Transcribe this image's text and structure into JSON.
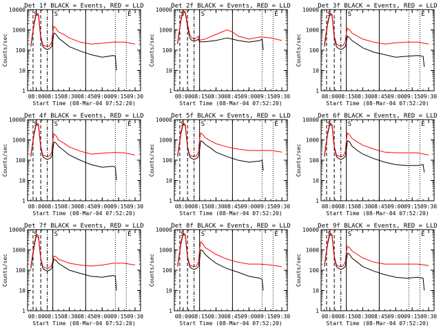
{
  "chart_data": [
    {
      "type": "line",
      "title": "Det 1f BLACK = Events, RED = LLD",
      "series": [
        {
          "color": "#000000",
          "x": [
            "07:55",
            "07:58",
            "08:00",
            "08:02",
            "08:04",
            "08:06",
            "08:08",
            "08:10",
            "08:12",
            "08:14",
            "08:15",
            "08:16",
            "08:18",
            "08:20",
            "08:25",
            "08:30",
            "08:40",
            "08:50",
            "09:00",
            "09:10",
            "09:12",
            "09:13"
          ],
          "y": [
            150,
            2000,
            6000,
            5000,
            400,
            150,
            120,
            110,
            120,
            150,
            300,
            700,
            600,
            400,
            250,
            150,
            90,
            60,
            45,
            55,
            50,
            10
          ]
        },
        {
          "color": "#ff0000",
          "x": [
            "07:55",
            "07:58",
            "08:00",
            "08:02",
            "08:04",
            "08:06",
            "08:08",
            "08:10",
            "08:12",
            "08:14",
            "08:15",
            "08:16",
            "08:18",
            "08:20",
            "08:25",
            "08:30",
            "08:40",
            "08:50",
            "09:00",
            "09:10",
            "09:20",
            "09:30"
          ],
          "y": [
            180,
            2500,
            7000,
            6000,
            500,
            180,
            160,
            150,
            160,
            250,
            800,
            1500,
            1200,
            800,
            600,
            400,
            250,
            200,
            220,
            250,
            250,
            200
          ]
        }
      ]
    },
    {
      "type": "line",
      "title": "Det 2f BLACK = Events, RED = LLD",
      "series": [
        {
          "color": "#000000",
          "x": [
            "07:55",
            "07:58",
            "08:00",
            "08:02",
            "08:04",
            "08:06",
            "08:08",
            "08:10",
            "08:12",
            "08:14",
            "08:15",
            "08:16",
            "08:20",
            "08:30",
            "08:40",
            "08:45",
            "08:50",
            "09:00",
            "09:10",
            "09:12",
            "09:13"
          ],
          "y": [
            200,
            3000,
            8000,
            7000,
            1500,
            400,
            300,
            280,
            300,
            350,
            250,
            260,
            260,
            300,
            400,
            350,
            300,
            250,
            300,
            350,
            100
          ]
        },
        {
          "color": "#ff0000",
          "x": [
            "07:55",
            "07:58",
            "08:00",
            "08:02",
            "08:04",
            "08:06",
            "08:08",
            "08:10",
            "08:12",
            "08:14",
            "08:15",
            "08:16",
            "08:20",
            "08:30",
            "08:40",
            "08:45",
            "08:50",
            "09:00",
            "09:10",
            "09:20",
            "09:30"
          ],
          "y": [
            250,
            3500,
            9000,
            8000,
            2000,
            600,
            400,
            350,
            400,
            500,
            300,
            320,
            350,
            600,
            1000,
            800,
            500,
            350,
            450,
            400,
            300
          ]
        }
      ]
    },
    {
      "type": "line",
      "title": "Det 3f BLACK = Events, RED = LLD",
      "series": [
        {
          "color": "#000000",
          "x": [
            "07:55",
            "07:58",
            "08:00",
            "08:02",
            "08:04",
            "08:06",
            "08:08",
            "08:10",
            "08:12",
            "08:14",
            "08:15",
            "08:16",
            "08:18",
            "08:20",
            "08:25",
            "08:30",
            "08:40",
            "08:50",
            "09:00",
            "09:10",
            "09:20",
            "09:25",
            "09:26"
          ],
          "y": [
            150,
            2000,
            6000,
            5000,
            400,
            150,
            120,
            110,
            120,
            150,
            250,
            500,
            400,
            300,
            200,
            130,
            80,
            60,
            45,
            50,
            55,
            50,
            15
          ]
        },
        {
          "color": "#ff0000",
          "x": [
            "07:55",
            "07:58",
            "08:00",
            "08:02",
            "08:04",
            "08:06",
            "08:08",
            "08:10",
            "08:12",
            "08:14",
            "08:15",
            "08:16",
            "08:18",
            "08:20",
            "08:25",
            "08:30",
            "08:40",
            "08:50",
            "09:00",
            "09:10",
            "09:20",
            "09:30"
          ],
          "y": [
            200,
            2500,
            7000,
            6000,
            500,
            200,
            170,
            160,
            170,
            260,
            700,
            1200,
            1000,
            700,
            500,
            350,
            250,
            200,
            230,
            250,
            250,
            200
          ]
        }
      ]
    },
    {
      "type": "line",
      "title": "Det 4f BLACK = Events, RED = LLD",
      "series": [
        {
          "color": "#000000",
          "x": [
            "07:55",
            "07:58",
            "08:00",
            "08:02",
            "08:04",
            "08:06",
            "08:08",
            "08:10",
            "08:12",
            "08:14",
            "08:15",
            "08:16",
            "08:18",
            "08:20",
            "08:25",
            "08:30",
            "08:40",
            "08:50",
            "09:00",
            "09:10",
            "09:12",
            "09:13"
          ],
          "y": [
            150,
            2000,
            6000,
            5000,
            400,
            150,
            120,
            110,
            120,
            150,
            300,
            800,
            700,
            500,
            300,
            180,
            100,
            60,
            45,
            50,
            45,
            10
          ]
        },
        {
          "color": "#ff0000",
          "x": [
            "07:55",
            "07:58",
            "08:00",
            "08:02",
            "08:04",
            "08:06",
            "08:08",
            "08:10",
            "08:12",
            "08:14",
            "08:15",
            "08:16",
            "08:18",
            "08:20",
            "08:25",
            "08:30",
            "08:40",
            "08:50",
            "09:00",
            "09:10",
            "09:20",
            "09:30"
          ],
          "y": [
            180,
            2500,
            7000,
            6000,
            500,
            180,
            160,
            150,
            160,
            250,
            900,
            2000,
            1600,
            1000,
            700,
            450,
            280,
            200,
            220,
            240,
            230,
            180
          ]
        }
      ]
    },
    {
      "type": "line",
      "title": "Det 5f BLACK = Events, RED = LLD",
      "series": [
        {
          "color": "#000000",
          "x": [
            "07:55",
            "07:58",
            "08:00",
            "08:02",
            "08:04",
            "08:06",
            "08:08",
            "08:10",
            "08:12",
            "08:14",
            "08:15",
            "08:16",
            "08:18",
            "08:20",
            "08:25",
            "08:30",
            "08:40",
            "08:50",
            "09:00",
            "09:10",
            "09:12",
            "09:13"
          ],
          "y": [
            150,
            2000,
            6000,
            5000,
            400,
            150,
            120,
            110,
            120,
            150,
            300,
            900,
            800,
            600,
            400,
            250,
            150,
            100,
            80,
            90,
            100,
            30
          ]
        },
        {
          "color": "#ff0000",
          "x": [
            "07:55",
            "07:58",
            "08:00",
            "08:02",
            "08:04",
            "08:06",
            "08:08",
            "08:10",
            "08:12",
            "08:14",
            "08:15",
            "08:16",
            "08:18",
            "08:20",
            "08:25",
            "08:30",
            "08:40",
            "08:50",
            "09:00",
            "09:10",
            "09:20",
            "09:30"
          ],
          "y": [
            180,
            2500,
            7000,
            6000,
            500,
            180,
            160,
            150,
            160,
            250,
            1000,
            2200,
            1800,
            1300,
            900,
            650,
            450,
            350,
            300,
            300,
            300,
            250
          ]
        }
      ]
    },
    {
      "type": "line",
      "title": "Det 6f BLACK = Events, RED = LLD",
      "series": [
        {
          "color": "#000000",
          "x": [
            "07:55",
            "07:58",
            "08:00",
            "08:02",
            "08:04",
            "08:06",
            "08:08",
            "08:10",
            "08:12",
            "08:14",
            "08:15",
            "08:16",
            "08:18",
            "08:20",
            "08:25",
            "08:30",
            "08:40",
            "08:50",
            "09:00",
            "09:10",
            "09:20",
            "09:25",
            "09:26"
          ],
          "y": [
            150,
            2000,
            6000,
            5000,
            400,
            150,
            120,
            110,
            120,
            150,
            300,
            900,
            800,
            500,
            300,
            200,
            120,
            80,
            60,
            55,
            55,
            60,
            25
          ]
        },
        {
          "color": "#ff0000",
          "x": [
            "07:55",
            "07:58",
            "08:00",
            "08:02",
            "08:04",
            "08:06",
            "08:08",
            "08:10",
            "08:12",
            "08:14",
            "08:15",
            "08:16",
            "08:18",
            "08:20",
            "08:25",
            "08:30",
            "08:40",
            "08:50",
            "09:00",
            "09:10",
            "09:20",
            "09:30"
          ],
          "y": [
            180,
            2500,
            7000,
            6000,
            500,
            180,
            160,
            150,
            160,
            250,
            1000,
            2200,
            1800,
            1200,
            800,
            550,
            350,
            250,
            230,
            230,
            230,
            180
          ]
        }
      ]
    },
    {
      "type": "line",
      "title": "Det 7f BLACK = Events, RED = LLD",
      "series": [
        {
          "color": "#000000",
          "x": [
            "07:55",
            "07:58",
            "08:00",
            "08:02",
            "08:04",
            "08:06",
            "08:08",
            "08:10",
            "08:12",
            "08:14",
            "08:15",
            "08:16",
            "08:18",
            "08:20",
            "08:25",
            "08:30",
            "08:40",
            "08:50",
            "09:00",
            "09:10",
            "09:12",
            "09:13"
          ],
          "y": [
            120,
            1500,
            5000,
            4000,
            350,
            120,
            100,
            90,
            100,
            120,
            200,
            350,
            300,
            220,
            150,
            100,
            70,
            50,
            45,
            55,
            50,
            10
          ]
        },
        {
          "color": "#ff0000",
          "x": [
            "07:55",
            "07:58",
            "08:00",
            "08:02",
            "08:04",
            "08:06",
            "08:08",
            "08:10",
            "08:12",
            "08:14",
            "08:15",
            "08:16",
            "08:18",
            "08:20",
            "08:25",
            "08:30",
            "08:40",
            "08:50",
            "09:00",
            "09:10",
            "09:20",
            "09:30"
          ],
          "y": [
            150,
            2000,
            6000,
            5000,
            400,
            150,
            130,
            120,
            130,
            180,
            300,
            500,
            450,
            350,
            280,
            220,
            180,
            160,
            180,
            220,
            220,
            180
          ]
        }
      ]
    },
    {
      "type": "line",
      "title": "Det 8f BLACK = Events, RED = LLD",
      "series": [
        {
          "color": "#000000",
          "x": [
            "07:55",
            "07:58",
            "08:00",
            "08:02",
            "08:04",
            "08:06",
            "08:08",
            "08:10",
            "08:12",
            "08:14",
            "08:15",
            "08:16",
            "08:18",
            "08:20",
            "08:25",
            "08:30",
            "08:40",
            "08:50",
            "09:00",
            "09:10",
            "09:12",
            "09:13"
          ],
          "y": [
            150,
            2000,
            6000,
            5000,
            400,
            150,
            120,
            110,
            120,
            150,
            300,
            1000,
            900,
            600,
            350,
            220,
            120,
            80,
            50,
            40,
            35,
            10
          ]
        },
        {
          "color": "#ff0000",
          "x": [
            "07:55",
            "07:58",
            "08:00",
            "08:02",
            "08:04",
            "08:06",
            "08:08",
            "08:10",
            "08:12",
            "08:14",
            "08:15",
            "08:16",
            "08:18",
            "08:20",
            "08:25",
            "08:30",
            "08:40",
            "08:50",
            "09:00",
            "09:10",
            "09:20",
            "09:30"
          ],
          "y": [
            180,
            2500,
            7000,
            6000,
            500,
            180,
            160,
            150,
            160,
            250,
            1000,
            2500,
            2000,
            1300,
            900,
            600,
            350,
            250,
            200,
            200,
            180,
            150
          ]
        }
      ]
    },
    {
      "type": "line",
      "title": "Det 9f BLACK = Events, RED = LLD",
      "series": [
        {
          "color": "#000000",
          "x": [
            "07:55",
            "07:58",
            "08:00",
            "08:02",
            "08:04",
            "08:06",
            "08:08",
            "08:10",
            "08:12",
            "08:14",
            "08:15",
            "08:16",
            "08:18",
            "08:20",
            "08:25",
            "08:30",
            "08:40",
            "08:50",
            "09:00",
            "09:10",
            "09:20",
            "09:25",
            "09:26"
          ],
          "y": [
            150,
            2000,
            6000,
            5000,
            400,
            150,
            120,
            110,
            120,
            150,
            300,
            700,
            600,
            400,
            250,
            150,
            90,
            60,
            45,
            40,
            45,
            40,
            10
          ]
        },
        {
          "color": "#ff0000",
          "x": [
            "07:55",
            "07:58",
            "08:00",
            "08:02",
            "08:04",
            "08:06",
            "08:08",
            "08:10",
            "08:12",
            "08:14",
            "08:15",
            "08:16",
            "08:18",
            "08:20",
            "08:25",
            "08:30",
            "08:40",
            "08:50",
            "09:00",
            "09:10",
            "09:20",
            "09:30"
          ],
          "y": [
            180,
            2500,
            7000,
            6000,
            500,
            180,
            160,
            150,
            160,
            250,
            800,
            1500,
            1300,
            900,
            600,
            400,
            250,
            200,
            200,
            200,
            200,
            170
          ]
        }
      ]
    }
  ],
  "shared": {
    "xlabel": "Start Time (08-Mar-04 07:52:20)",
    "ylabel": "Counts/sec",
    "xticks": [
      "08:00",
      "08:15",
      "08:30",
      "08:45",
      "09:00",
      "09:15",
      "09:30"
    ],
    "xlim": [
      "07:52",
      "09:35"
    ],
    "ytick_values": [
      1,
      10,
      100,
      1000,
      10000
    ],
    "ytick_labels": [
      "1",
      "10",
      "100",
      "1000",
      "10000"
    ],
    "ylim": [
      1,
      10000
    ],
    "yscale": "log",
    "markers": [
      {
        "time": "07:57",
        "style": "dashed"
      },
      {
        "time": "08:04",
        "style": "dashed"
      },
      {
        "time": "08:10",
        "style": "dashdot"
      },
      {
        "time": "08:15",
        "style": "solid",
        "label": "S"
      },
      {
        "time": "08:45",
        "style": "solid"
      },
      {
        "time": "09:12",
        "style": "dotted"
      },
      {
        "time": "09:22",
        "style": "dotted",
        "label": "E"
      }
    ],
    "marker_label_left": "S"
  }
}
